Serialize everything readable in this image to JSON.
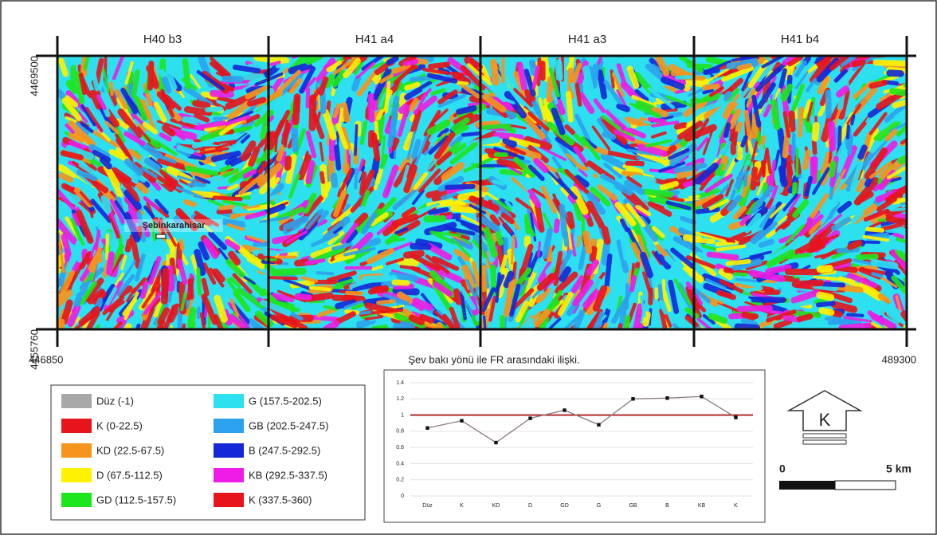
{
  "map": {
    "sheets": [
      "H40 b3",
      "H41 a4",
      "H41 a3",
      "H41 b4"
    ],
    "coordinates": {
      "top_left_north": "4469500",
      "bottom_left_north": "4455760",
      "bottom_left_east": "446850",
      "bottom_right_east": "489300"
    },
    "town": "Şebinkarahisar"
  },
  "legend": {
    "items": [
      {
        "label": "Düz (-1)",
        "color": "#a8a8a8"
      },
      {
        "label": "K (0-22.5)",
        "color": "#e8141c"
      },
      {
        "label": "KD (22.5-67.5)",
        "color": "#f7941d"
      },
      {
        "label": "D (67.5-112.5)",
        "color": "#fff200"
      },
      {
        "label": "GD (112.5-157.5)",
        "color": "#1ee61e"
      },
      {
        "label": "G (157.5-202.5)",
        "color": "#2de0f0"
      },
      {
        "label": "GB (202.5-247.5)",
        "color": "#2ca2ee"
      },
      {
        "label": "B (247.5-292.5)",
        "color": "#1428d8"
      },
      {
        "label": "KB (292.5-337.5)",
        "color": "#ee1ce6"
      },
      {
        "label": "K (337.5-360)",
        "color": "#e8141c"
      }
    ]
  },
  "chart_data": {
    "type": "line",
    "title": "Şev bakı yönü ile FR arasındaki ilişki.",
    "categories": [
      "Düz",
      "K",
      "KD",
      "D",
      "GD",
      "G",
      "GB",
      "B",
      "KB",
      "K"
    ],
    "values": [
      0.84,
      0.93,
      0.66,
      0.96,
      1.06,
      0.88,
      1.2,
      1.21,
      1.23,
      0.97
    ],
    "color": "#8a7a7a",
    "reference_line": 1,
    "reference_color": "#b01c1c",
    "ylim": [
      0,
      1.4
    ],
    "yticks": [
      0,
      0.2,
      0.4,
      0.6,
      0.8,
      1,
      1.2,
      1.4
    ],
    "grid": true
  },
  "north_arrow": "K",
  "scale_bar": {
    "start": "0",
    "end": "5 km"
  }
}
